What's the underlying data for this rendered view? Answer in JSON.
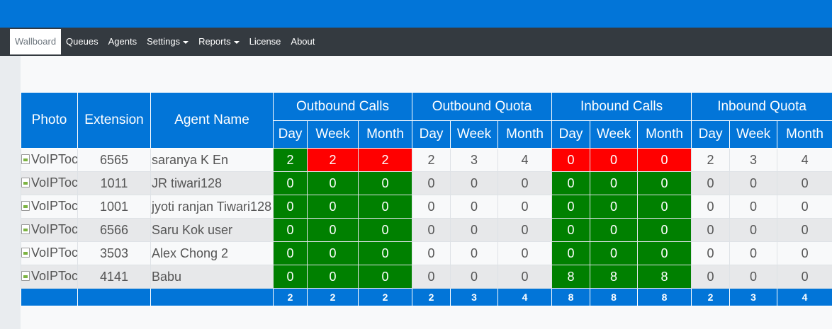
{
  "nav": {
    "items": [
      {
        "label": "Wallboard"
      },
      {
        "label": "Queues"
      },
      {
        "label": "Agents"
      },
      {
        "label": "Settings"
      },
      {
        "label": "Reports"
      },
      {
        "label": "License"
      },
      {
        "label": "About"
      }
    ]
  },
  "colors": {
    "primary": "#0275d8",
    "navbar": "#343a40",
    "good": "#008000",
    "bad": "#ff0000"
  },
  "table": {
    "headers": {
      "photo": "Photo",
      "extension": "Extension",
      "agent_name": "Agent Name",
      "groups": [
        "Outbound Calls",
        "Outbound Quota",
        "Inbound Calls",
        "Inbound Quota"
      ],
      "periods": [
        "Day",
        "Week",
        "Month"
      ]
    },
    "photo_alt": "VoIPToc",
    "rows": [
      {
        "extension": "6565",
        "name": "saranya K En",
        "values": [
          "2",
          "2",
          "2",
          "2",
          "3",
          "4",
          "0",
          "0",
          "0",
          "2",
          "3",
          "4"
        ]
      },
      {
        "extension": "1011",
        "name": "JR tiwari128",
        "values": [
          "0",
          "0",
          "0",
          "0",
          "0",
          "0",
          "0",
          "0",
          "0",
          "0",
          "0",
          "0"
        ]
      },
      {
        "extension": "1001",
        "name": "jyoti ranjan Tiwari128",
        "values": [
          "0",
          "0",
          "0",
          "0",
          "0",
          "0",
          "0",
          "0",
          "0",
          "0",
          "0",
          "0"
        ]
      },
      {
        "extension": "6566",
        "name": "Saru Kok user",
        "values": [
          "0",
          "0",
          "0",
          "0",
          "0",
          "0",
          "0",
          "0",
          "0",
          "0",
          "0",
          "0"
        ]
      },
      {
        "extension": "3503",
        "name": "Alex Chong 2",
        "values": [
          "0",
          "0",
          "0",
          "0",
          "0",
          "0",
          "0",
          "0",
          "0",
          "0",
          "0",
          "0"
        ]
      },
      {
        "extension": "4141",
        "name": "Babu",
        "values": [
          "0",
          "0",
          "0",
          "0",
          "0",
          "0",
          "8",
          "8",
          "8",
          "0",
          "0",
          "0"
        ]
      }
    ],
    "totals": [
      "2",
      "2",
      "2",
      "2",
      "3",
      "4",
      "8",
      "8",
      "8",
      "2",
      "3",
      "4"
    ]
  }
}
